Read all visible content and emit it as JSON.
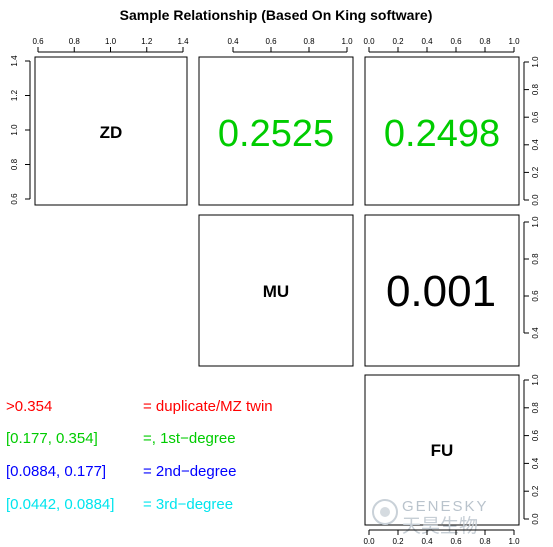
{
  "chart_data": {
    "type": "table",
    "title": "Sample Relationship (Based On King software)",
    "samples": [
      "ZD",
      "MU",
      "FU"
    ],
    "kinship": [
      {
        "a": "ZD",
        "b": "MU",
        "text": "0.2525",
        "value": 0.2525,
        "color": "#00cc00"
      },
      {
        "a": "ZD",
        "b": "FU",
        "text": "0.2498",
        "value": 0.2498,
        "color": "#00cc00"
      },
      {
        "a": "MU",
        "b": "FU",
        "text": "0.001",
        "value": 0.001,
        "color": "#000000"
      }
    ],
    "legend": [
      {
        "range": ">0.354",
        "label": "= duplicate/MZ twin",
        "color": "#ff0000"
      },
      {
        "range": "[0.177, 0.354]",
        "label": "=, 1st−degree",
        "color": "#00cc00"
      },
      {
        "range": "[0.0884, 0.177]",
        "label": "= 2nd−degree",
        "color": "#0000ff"
      },
      {
        "range": "[0.0442, 0.0884]",
        "label": "= 3rd−degree",
        "color": "#00e5ee"
      }
    ],
    "axes": {
      "top": [
        [
          "0.6",
          "0.8",
          "1.0",
          "1.2",
          "1.4"
        ],
        [
          "0.4",
          "0.6",
          "0.8",
          "1.0"
        ],
        [
          "0.0",
          "0.2",
          "0.4",
          "0.6",
          "0.8",
          "1.0"
        ]
      ],
      "left": [
        "0.6",
        "0.8",
        "1.0",
        "1.2",
        "1.4"
      ],
      "right": [
        [
          "0.0",
          "0.2",
          "0.4",
          "0.6",
          "0.8",
          "1.0"
        ],
        [
          "0.4",
          "0.6",
          "0.8",
          "1.0"
        ],
        [
          "0.0",
          "0.2",
          "0.4",
          "0.6",
          "0.8",
          "1.0"
        ]
      ],
      "bottom": [
        "0.0",
        "0.2",
        "0.4",
        "0.6",
        "0.8",
        "1.0"
      ]
    },
    "grid": false
  },
  "watermark": {
    "brand": "GENESKY",
    "chinese": "天昊生物"
  }
}
